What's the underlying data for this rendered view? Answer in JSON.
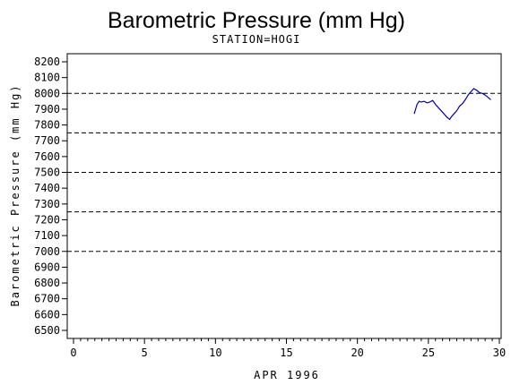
{
  "chart_data": {
    "type": "line",
    "title": "Barometric Pressure (mm Hg)",
    "subtitle": "STATION=HOGI",
    "xlabel": "APR 1996",
    "ylabel": "Barometric Pressure (mm Hg)",
    "xlim": [
      0,
      30
    ],
    "ylim": [
      6500,
      8200
    ],
    "x_ticks": [
      0,
      5,
      10,
      15,
      20,
      25,
      30
    ],
    "x_minor_step": 0.5,
    "y_ticks": [
      6500,
      6600,
      6700,
      6800,
      6900,
      7000,
      7100,
      7200,
      7300,
      7400,
      7500,
      7600,
      7700,
      7800,
      7900,
      8000,
      8100,
      8200
    ],
    "reference_lines": [
      7000,
      7250,
      7500,
      7750,
      8000
    ],
    "grid": false,
    "line_color": "#0000aa",
    "series": [
      {
        "x": [
          24.0,
          24.1,
          24.2,
          24.35,
          24.5,
          24.7,
          24.9,
          25.1,
          25.3,
          25.5,
          25.7,
          25.9,
          26.1,
          26.3,
          26.5,
          26.6,
          26.8,
          27.0,
          27.2,
          27.4,
          27.6,
          27.8,
          28.0,
          28.2,
          28.4,
          28.6,
          28.8,
          29.0,
          29.2,
          29.4
        ],
        "y": [
          7870,
          7900,
          7930,
          7950,
          7945,
          7950,
          7940,
          7945,
          7955,
          7930,
          7910,
          7890,
          7870,
          7850,
          7835,
          7850,
          7870,
          7890,
          7920,
          7935,
          7960,
          7990,
          8010,
          8030,
          8020,
          8005,
          8000,
          7990,
          7975,
          7960
        ]
      }
    ]
  }
}
